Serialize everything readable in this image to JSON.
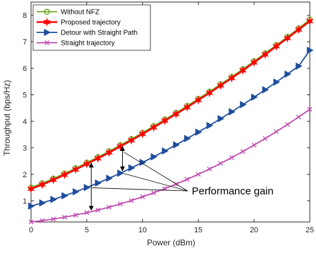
{
  "chart_data": {
    "type": "line",
    "title": "",
    "xlabel": "Power (dBm)",
    "ylabel": "Throughput (bps/Hz)",
    "xlim": [
      0,
      25
    ],
    "ylim": [
      0.2,
      8.5
    ],
    "xticks": [
      0,
      5,
      10,
      15,
      20,
      25
    ],
    "yticks": [
      1,
      2,
      3,
      4,
      5,
      6,
      7,
      8
    ],
    "grid": false,
    "legend_position": "top-left",
    "x": [
      0,
      1,
      2,
      3,
      4,
      5,
      6,
      7,
      8,
      9,
      10,
      11,
      12,
      13,
      14,
      15,
      16,
      17,
      18,
      19,
      20,
      21,
      22,
      23,
      24,
      25
    ],
    "series": [
      {
        "name": "Without NFZ",
        "color": "#77AC30",
        "marker": "circle",
        "values": [
          1.5,
          1.66,
          1.84,
          2.03,
          2.23,
          2.44,
          2.65,
          2.87,
          3.1,
          3.33,
          3.57,
          3.82,
          4.07,
          4.32,
          4.58,
          4.85,
          5.12,
          5.4,
          5.68,
          5.97,
          6.27,
          6.57,
          6.88,
          7.19,
          7.51,
          7.84
        ]
      },
      {
        "name": "Proposed trajectory",
        "color": "#FF0000",
        "marker": "hexagram",
        "values": [
          1.45,
          1.61,
          1.79,
          1.98,
          2.18,
          2.39,
          2.6,
          2.82,
          3.05,
          3.28,
          3.52,
          3.77,
          4.02,
          4.27,
          4.53,
          4.8,
          5.07,
          5.35,
          5.63,
          5.92,
          6.22,
          6.52,
          6.83,
          7.14,
          7.46,
          7.78
        ]
      },
      {
        "name": "Detour with Straight Path",
        "color": "#1F4E9C",
        "marker": "triangle-right",
        "values": [
          0.8,
          0.92,
          1.05,
          1.19,
          1.34,
          1.5,
          1.67,
          1.85,
          2.04,
          2.24,
          2.45,
          2.66,
          2.88,
          3.11,
          3.35,
          3.59,
          3.84,
          4.1,
          4.36,
          4.63,
          4.91,
          5.19,
          5.48,
          5.78,
          6.08,
          6.68
        ]
      },
      {
        "name": "Straight trajectory",
        "color": "#C04DB0",
        "marker": "x",
        "values": [
          0.2,
          0.25,
          0.31,
          0.38,
          0.46,
          0.55,
          0.65,
          0.76,
          0.88,
          1.01,
          1.15,
          1.3,
          1.46,
          1.63,
          1.81,
          2.0,
          2.2,
          2.41,
          2.63,
          2.86,
          3.1,
          3.35,
          3.61,
          3.88,
          4.16,
          4.45
        ]
      }
    ],
    "annotations": [
      {
        "text": "Performance gain"
      }
    ]
  }
}
